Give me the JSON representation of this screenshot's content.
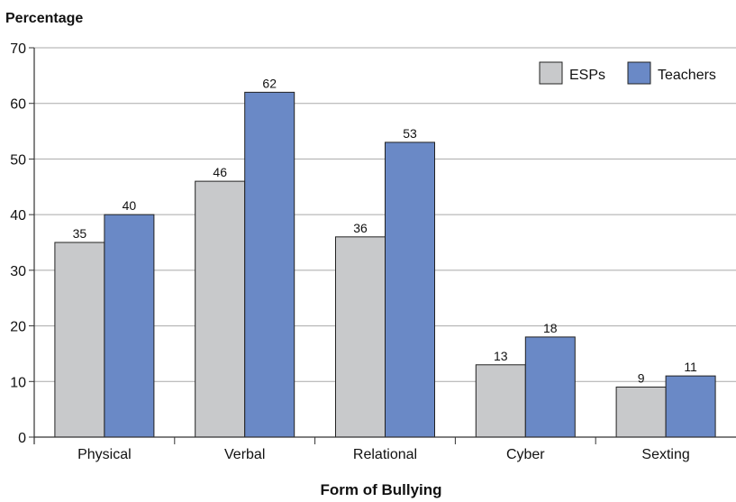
{
  "chart_data": {
    "type": "bar",
    "ylabel": "Percentage",
    "xlabel": "Form of Bullying",
    "ylim": [
      0,
      70
    ],
    "yticks": [
      0,
      10,
      20,
      30,
      40,
      50,
      60,
      70
    ],
    "grid": true,
    "legend_position": "top-right",
    "categories": [
      "Physical",
      "Verbal",
      "Relational",
      "Cyber",
      "Sexting"
    ],
    "series": [
      {
        "name": "ESPs",
        "color": "#c8c9cb",
        "values": [
          35,
          46,
          36,
          13,
          9
        ]
      },
      {
        "name": "Teachers",
        "color": "#6a89c6",
        "values": [
          40,
          62,
          53,
          18,
          11
        ]
      }
    ]
  }
}
